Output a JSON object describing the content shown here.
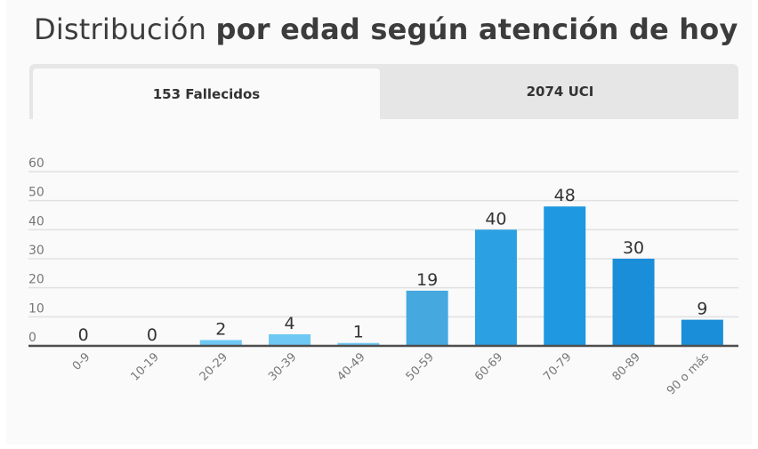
{
  "page": {
    "title_light": "Distribución",
    "title_bold": "por edad según atención de hoy"
  },
  "tabs": [
    {
      "label": "153 Fallecidos",
      "active": true
    },
    {
      "label": "2074 UCI",
      "active": false
    }
  ],
  "colors": {
    "bar_light": "#6ec8f3",
    "bar_mid": "#45a9e0",
    "bar_strong": "#2ba0e3",
    "bar_deep": "#1e98e1",
    "bar_deepest": "#1a8ed8",
    "grid": "#e1e1e1",
    "axis": "#4d4d4d",
    "text": "#333333",
    "tick_text": "#777777"
  },
  "chart_data": {
    "type": "bar",
    "categories": [
      "0-9",
      "10-19",
      "20-29",
      "30-39",
      "40-49",
      "50-59",
      "60-69",
      "70-79",
      "80-89",
      "90 o más"
    ],
    "values": [
      0,
      0,
      2,
      4,
      1,
      19,
      40,
      48,
      30,
      9
    ],
    "yticks": [
      0,
      10,
      20,
      30,
      40,
      50,
      60
    ],
    "ylim": [
      0,
      60
    ],
    "grid": true,
    "data_labels": true,
    "legend": "none"
  }
}
